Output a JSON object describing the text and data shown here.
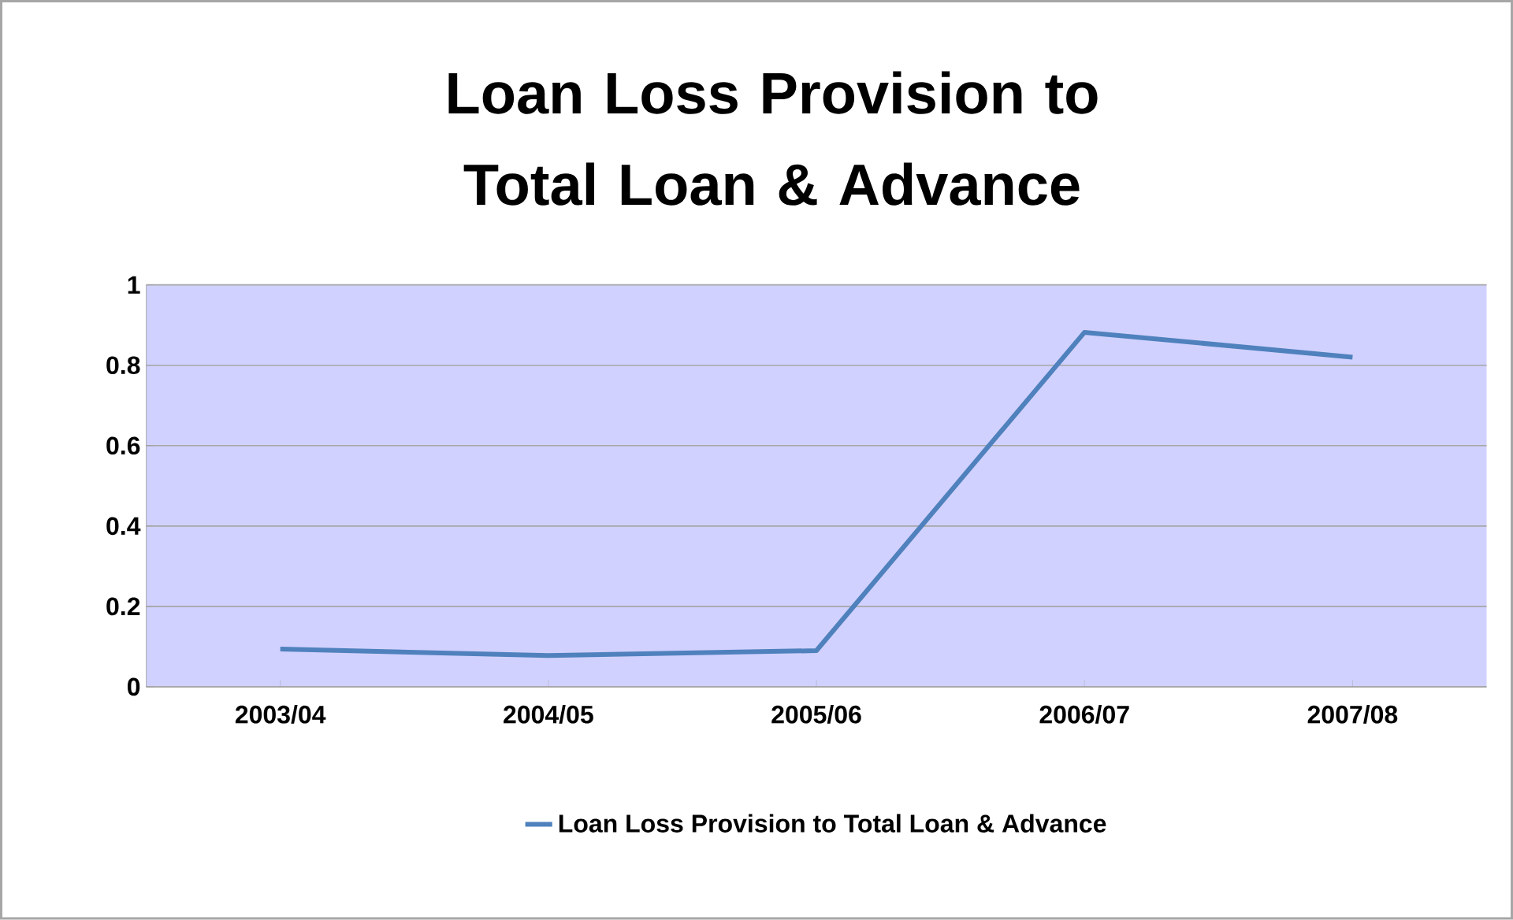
{
  "chart_data": {
    "type": "line",
    "title": "Loan Loss Provision to Total Loan & Advance",
    "categories": [
      "2003/04",
      "2004/05",
      "2005/06",
      "2006/07",
      "2007/08"
    ],
    "series": [
      {
        "name": "Loan Loss Provision to Total Loan & Advance",
        "color": "#4f81bd",
        "values": [
          0.094,
          0.078,
          0.09,
          0.882,
          0.82
        ]
      }
    ],
    "ylim": [
      0,
      1
    ],
    "yticks": [
      0,
      0.2,
      0.4,
      0.6,
      0.8,
      {
        "value": 1,
        "label": "1"
      }
    ],
    "grid": "y",
    "legend": "bottom",
    "marker": "none",
    "line_style": "solid"
  }
}
